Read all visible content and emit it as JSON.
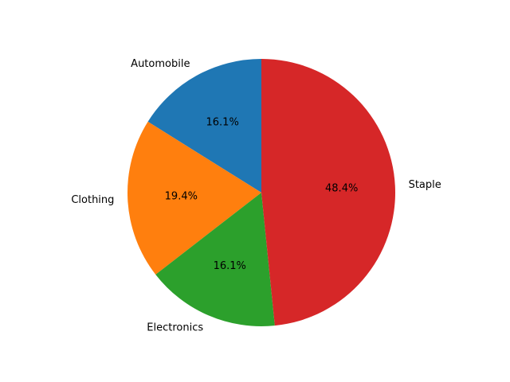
{
  "chart_data": {
    "type": "pie",
    "categories": [
      "Automobile",
      "Clothing",
      "Electronics",
      "Staple"
    ],
    "values": [
      16.1,
      19.4,
      16.1,
      48.4
    ],
    "percent_labels": [
      "16.1%",
      "19.4%",
      "16.1%",
      "48.4%"
    ],
    "colors": [
      "#1f77b4",
      "#ff7f0e",
      "#2ca02c",
      "#d62728"
    ],
    "start_angle_deg": 90,
    "direction": "counterclockwise",
    "legend": "none"
  }
}
